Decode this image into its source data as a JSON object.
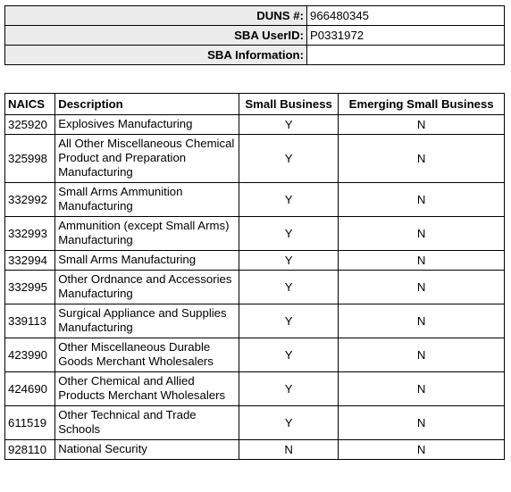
{
  "info": {
    "duns_label": "DUNS #:",
    "duns_value": "966480345",
    "userid_label": "SBA UserID:",
    "userid_value": "P0331972",
    "sba_info_label": "SBA Information:",
    "sba_info_value": ""
  },
  "naics_table": {
    "headers": [
      "NAICS",
      "Description",
      "Small Business",
      "Emerging Small Business"
    ],
    "rows": [
      {
        "code": "325920",
        "description": "Explosives Manufacturing",
        "small_business": "Y",
        "emerging_small_business": "N"
      },
      {
        "code": "325998",
        "description": "All Other Miscellaneous Chemical Product and Preparation Manufacturing",
        "small_business": "Y",
        "emerging_small_business": "N"
      },
      {
        "code": "332992",
        "description": "Small Arms Ammunition Manufacturing",
        "small_business": "Y",
        "emerging_small_business": "N"
      },
      {
        "code": "332993",
        "description": "Ammunition (except Small Arms) Manufacturing",
        "small_business": "Y",
        "emerging_small_business": "N"
      },
      {
        "code": "332994",
        "description": "Small Arms Manufacturing",
        "small_business": "Y",
        "emerging_small_business": "N"
      },
      {
        "code": "332995",
        "description": "Other Ordnance and Accessories Manufacturing",
        "small_business": "Y",
        "emerging_small_business": "N"
      },
      {
        "code": "339113",
        "description": "Surgical Appliance and Supplies Manufacturing",
        "small_business": "Y",
        "emerging_small_business": "N"
      },
      {
        "code": "423990",
        "description": "Other Miscellaneous Durable Goods Merchant Wholesalers",
        "small_business": "Y",
        "emerging_small_business": "N"
      },
      {
        "code": "424690",
        "description": "Other Chemical and Allied Products Merchant Wholesalers",
        "small_business": "Y",
        "emerging_small_business": "N"
      },
      {
        "code": "611519",
        "description": "Other Technical and Trade Schools",
        "small_business": "Y",
        "emerging_small_business": "N"
      },
      {
        "code": "928110",
        "description": "National Security",
        "small_business": "N",
        "emerging_small_business": "N"
      }
    ]
  }
}
